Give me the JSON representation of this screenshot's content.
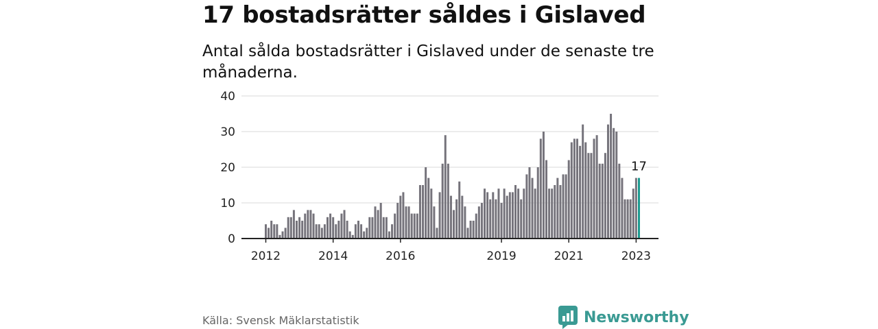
{
  "title": "17 bostadsrätter såldes i Gislaved",
  "subtitle": "Antal sålda bostadsrätter i Gislaved under de senaste tre månaderna.",
  "source": "Källa: Svensk Mäklarstatistik",
  "brand": "Newsworthy",
  "colors": {
    "bar": "#75737b",
    "highlight": "#1b9a8f",
    "grid": "#d9d9d9",
    "axis": "#222222",
    "brand": "#3a9a93"
  },
  "chart_data": {
    "type": "bar",
    "ylim": [
      0,
      40
    ],
    "yticks": [
      0,
      10,
      20,
      30,
      40
    ],
    "grid": true,
    "start": {
      "year": 2012,
      "month": 1
    },
    "xticks": [
      {
        "label": "2012",
        "index": 0
      },
      {
        "label": "2014",
        "index": 24
      },
      {
        "label": "2016",
        "index": 48
      },
      {
        "label": "2019",
        "index": 84
      },
      {
        "label": "2021",
        "index": 108
      },
      {
        "label": "2023",
        "index": 132
      }
    ],
    "highlight_label": "17",
    "values": [
      4,
      3,
      5,
      4,
      4,
      1,
      2,
      3,
      6,
      6,
      8,
      5,
      6,
      5,
      7,
      8,
      8,
      7,
      4,
      4,
      3,
      4,
      6,
      7,
      6,
      4,
      5,
      7,
      8,
      5,
      2,
      1,
      4,
      5,
      4,
      2,
      3,
      6,
      6,
      9,
      8,
      10,
      6,
      6,
      2,
      4,
      7,
      10,
      12,
      13,
      9,
      9,
      7,
      7,
      7,
      15,
      15,
      20,
      17,
      14,
      9,
      3,
      13,
      21,
      29,
      21,
      12,
      8,
      11,
      16,
      12,
      9,
      3,
      5,
      5,
      7,
      9,
      10,
      14,
      13,
      11,
      13,
      11,
      14,
      10,
      14,
      12,
      13,
      13,
      15,
      14,
      11,
      14,
      18,
      20,
      17,
      14,
      20,
      28,
      30,
      22,
      14,
      14,
      15,
      17,
      15,
      18,
      18,
      22,
      27,
      28,
      28,
      26,
      32,
      27,
      24,
      24,
      28,
      29,
      21,
      21,
      24,
      32,
      35,
      31,
      30,
      21,
      17,
      11,
      11,
      11,
      14,
      17,
      17
    ]
  }
}
